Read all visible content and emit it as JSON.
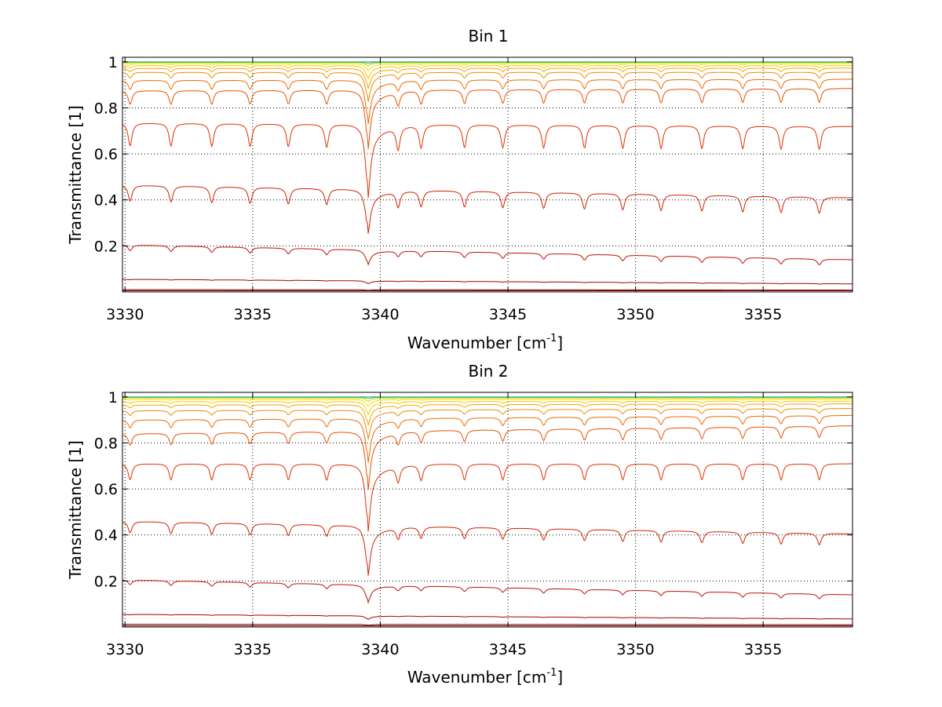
{
  "chart_data": [
    {
      "type": "line",
      "title": "Bin 1",
      "xlabel_main": "Wavenumber [cm",
      "xlabel_sup": "-1",
      "xlabel_end": "]",
      "ylabel": "Transmittance [1]",
      "xlim": [
        3329.9,
        3358.5
      ],
      "ylim": [
        0.0,
        1.02
      ],
      "xticks": [
        3330,
        3335,
        3340,
        3345,
        3350,
        3355
      ],
      "xtick_labels": [
        "3330",
        "3335",
        "3340",
        "3345",
        "3350",
        "3355"
      ],
      "yticks": [
        0.2,
        0.4,
        0.6,
        0.8,
        1.0
      ],
      "ytick_labels": [
        "0.2",
        "0.4",
        "0.6",
        "0.8",
        "1"
      ],
      "grid": "dotted",
      "strong_line_center": 3339.5,
      "weak_line_centers": [
        3330.2,
        3331.8,
        3333.4,
        3334.9,
        3336.4,
        3337.9,
        3340.7,
        3341.6,
        3343.3,
        3344.8,
        3346.4,
        3348.0,
        3349.5,
        3351.0,
        3352.6,
        3354.2,
        3355.7,
        3357.2
      ],
      "series": [
        {
          "name": "curve-1",
          "baseline_left": 0.005,
          "baseline_right": 0.005,
          "strong_depth": 0.0,
          "weak_depth": 0.0,
          "color": "#800000"
        },
        {
          "name": "curve-2",
          "baseline_left": 0.01,
          "baseline_right": 0.008,
          "strong_depth": 0.002,
          "weak_depth": 0.0,
          "color": "#8b0000"
        },
        {
          "name": "curve-3",
          "baseline_left": 0.055,
          "baseline_right": 0.035,
          "strong_depth": 0.01,
          "weak_depth": 0.002,
          "color": "#a30000"
        },
        {
          "name": "curve-4",
          "baseline_left": 0.205,
          "baseline_right": 0.14,
          "strong_depth": 0.05,
          "weak_depth": 0.025,
          "color": "#c01000"
        },
        {
          "name": "curve-5",
          "baseline_left": 0.465,
          "baseline_right": 0.41,
          "strong_depth": 0.15,
          "weak_depth": 0.07,
          "color": "#d02000"
        },
        {
          "name": "curve-6",
          "baseline_left": 0.735,
          "baseline_right": 0.72,
          "strong_depth": 0.25,
          "weak_depth": 0.1,
          "color": "#e03000"
        },
        {
          "name": "curve-7",
          "baseline_left": 0.875,
          "baseline_right": 0.885,
          "strong_depth": 0.2,
          "weak_depth": 0.06,
          "color": "#e85000"
        },
        {
          "name": "curve-8",
          "baseline_left": 0.92,
          "baseline_right": 0.925,
          "strong_depth": 0.15,
          "weak_depth": 0.04,
          "color": "#ee6a00"
        },
        {
          "name": "curve-9",
          "baseline_left": 0.955,
          "baseline_right": 0.955,
          "strong_depth": 0.1,
          "weak_depth": 0.025,
          "color": "#f28a00"
        },
        {
          "name": "curve-10",
          "baseline_left": 0.972,
          "baseline_right": 0.973,
          "strong_depth": 0.07,
          "weak_depth": 0.015,
          "color": "#f5a800"
        },
        {
          "name": "curve-11",
          "baseline_left": 0.984,
          "baseline_right": 0.984,
          "strong_depth": 0.045,
          "weak_depth": 0.01,
          "color": "#f8c800"
        },
        {
          "name": "curve-12",
          "baseline_left": 0.992,
          "baseline_right": 0.992,
          "strong_depth": 0.025,
          "weak_depth": 0.005,
          "color": "#f0e000"
        },
        {
          "name": "curve-13",
          "baseline_left": 0.997,
          "baseline_right": 0.997,
          "strong_depth": 0.012,
          "weak_depth": 0.003,
          "color": "#c8e000"
        },
        {
          "name": "curve-14",
          "baseline_left": 0.999,
          "baseline_right": 0.999,
          "strong_depth": 0.005,
          "weak_depth": 0.0,
          "color": "#60c040"
        },
        {
          "name": "curve-15",
          "baseline_left": 1.0,
          "baseline_right": 1.0,
          "strong_depth": 0.0,
          "weak_depth": 0.0,
          "color": "#20a0a0"
        }
      ]
    },
    {
      "type": "line",
      "title": "Bin 2",
      "xlabel_main": "Wavenumber [cm",
      "xlabel_sup": "-1",
      "xlabel_end": "]",
      "ylabel": "Transmittance [1]",
      "xlim": [
        3329.9,
        3358.5
      ],
      "ylim": [
        0.0,
        1.02
      ],
      "xticks": [
        3330,
        3335,
        3340,
        3345,
        3350,
        3355
      ],
      "xtick_labels": [
        "3330",
        "3335",
        "3340",
        "3345",
        "3350",
        "3355"
      ],
      "yticks": [
        0.2,
        0.4,
        0.6,
        0.8,
        1.0
      ],
      "ytick_labels": [
        "0.2",
        "0.4",
        "0.6",
        "0.8",
        "1"
      ],
      "grid": "dotted",
      "strong_line_center": 3339.5,
      "weak_line_centers": [
        3330.2,
        3331.8,
        3333.4,
        3334.9,
        3336.4,
        3337.9,
        3340.7,
        3341.6,
        3343.3,
        3344.8,
        3346.4,
        3348.0,
        3349.5,
        3351.0,
        3352.6,
        3354.2,
        3355.7,
        3357.2
      ],
      "series": [
        {
          "name": "curve-1",
          "baseline_left": 0.005,
          "baseline_right": 0.005,
          "strong_depth": 0.0,
          "weak_depth": 0.0,
          "color": "#800000"
        },
        {
          "name": "curve-2",
          "baseline_left": 0.012,
          "baseline_right": 0.01,
          "strong_depth": 0.003,
          "weak_depth": 0.0,
          "color": "#8b0000"
        },
        {
          "name": "curve-3",
          "baseline_left": 0.055,
          "baseline_right": 0.035,
          "strong_depth": 0.012,
          "weak_depth": 0.002,
          "color": "#a30000"
        },
        {
          "name": "curve-4",
          "baseline_left": 0.205,
          "baseline_right": 0.14,
          "strong_depth": 0.06,
          "weak_depth": 0.02,
          "color": "#c01000"
        },
        {
          "name": "curve-5",
          "baseline_left": 0.46,
          "baseline_right": 0.405,
          "strong_depth": 0.17,
          "weak_depth": 0.05,
          "color": "#d02000"
        },
        {
          "name": "curve-6",
          "baseline_left": 0.71,
          "baseline_right": 0.71,
          "strong_depth": 0.23,
          "weak_depth": 0.07,
          "color": "#e03000"
        },
        {
          "name": "curve-7",
          "baseline_left": 0.84,
          "baseline_right": 0.875,
          "strong_depth": 0.2,
          "weak_depth": 0.05,
          "color": "#e85000"
        },
        {
          "name": "curve-8",
          "baseline_left": 0.9,
          "baseline_right": 0.92,
          "strong_depth": 0.15,
          "weak_depth": 0.035,
          "color": "#ee6a00"
        },
        {
          "name": "curve-9",
          "baseline_left": 0.94,
          "baseline_right": 0.95,
          "strong_depth": 0.1,
          "weak_depth": 0.02,
          "color": "#f28a00"
        },
        {
          "name": "curve-10",
          "baseline_left": 0.965,
          "baseline_right": 0.97,
          "strong_depth": 0.07,
          "weak_depth": 0.012,
          "color": "#f5a800"
        },
        {
          "name": "curve-11",
          "baseline_left": 0.98,
          "baseline_right": 0.982,
          "strong_depth": 0.045,
          "weak_depth": 0.008,
          "color": "#f8c800"
        },
        {
          "name": "curve-12",
          "baseline_left": 0.99,
          "baseline_right": 0.991,
          "strong_depth": 0.025,
          "weak_depth": 0.004,
          "color": "#f0e000"
        },
        {
          "name": "curve-13",
          "baseline_left": 0.996,
          "baseline_right": 0.996,
          "strong_depth": 0.012,
          "weak_depth": 0.002,
          "color": "#c8e000"
        },
        {
          "name": "curve-14",
          "baseline_left": 0.999,
          "baseline_right": 0.999,
          "strong_depth": 0.005,
          "weak_depth": 0.0,
          "color": "#60c040"
        },
        {
          "name": "curve-15",
          "baseline_left": 1.0,
          "baseline_right": 1.0,
          "strong_depth": 0.0,
          "weak_depth": 0.0,
          "color": "#20a0a0"
        }
      ]
    }
  ]
}
